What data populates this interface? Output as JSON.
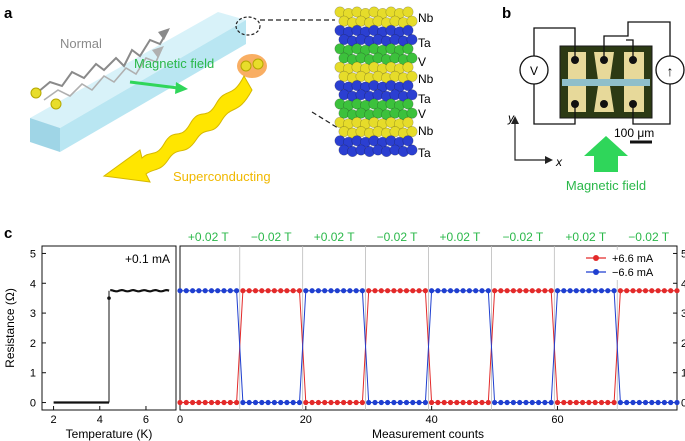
{
  "panels": {
    "a": {
      "label": "a",
      "normal_label": "Normal",
      "field_label": "Magnetic field",
      "sc_label": "Superconducting",
      "layers": [
        "Nb",
        "Ta",
        "V",
        "Nb",
        "Ta",
        "V",
        "Nb",
        "Ta"
      ]
    },
    "b": {
      "label": "b",
      "voltmeter": "V",
      "ammeter_symbol": "↑",
      "scalebar": "100 μm",
      "axis_x": "x",
      "axis_y": "y",
      "field_label": "Magnetic field"
    },
    "c": {
      "label": "c"
    }
  },
  "colors": {
    "nb": "#e6dc2a",
    "ta": "#2b3fd1",
    "v": "#3cc13c",
    "field_arrow": "#2fd65a",
    "field_text": "#2bb84a",
    "sc_text": "#f0b800",
    "ribbon": "#ffe600",
    "bar": "#b9e6f2",
    "red": "#e32a2a",
    "blue": "#1f3fd0"
  },
  "chart_data": [
    {
      "type": "line",
      "annotation": "+0.1 mA",
      "xlabel": "Temperature (K)",
      "ylabel": "Resistance (Ω)",
      "xlim": [
        1.5,
        7.3
      ],
      "ylim": [
        -0.25,
        5.25
      ],
      "xticks": [
        2,
        4,
        6
      ],
      "yticks": [
        0,
        1,
        2,
        3,
        4,
        5
      ],
      "x_transition": 4.4,
      "r_normal": 3.75,
      "r_step_low": 3.5,
      "r_super": 0.0
    },
    {
      "type": "scatter",
      "xlabel": "Measurement counts",
      "xlim": [
        0,
        79
      ],
      "ylim": [
        -0.25,
        5.25
      ],
      "xticks": [
        0,
        20,
        40,
        60
      ],
      "yticks": [
        0,
        1,
        2,
        3,
        4,
        5
      ],
      "field_labels": [
        "+0.02 T",
        "−0.02 T",
        "+0.02 T",
        "−0.02 T",
        "+0.02 T",
        "−0.02 T",
        "+0.02 T",
        "−0.02 T"
      ],
      "segment_length": 10,
      "r_high": 3.75,
      "r_low": 0.0,
      "series": [
        {
          "name": "+6.6 mA",
          "color": "#e32a2a",
          "starts_high": false
        },
        {
          "name": "−6.6 mA",
          "color": "#1f3fd0",
          "starts_high": true
        }
      ]
    }
  ]
}
